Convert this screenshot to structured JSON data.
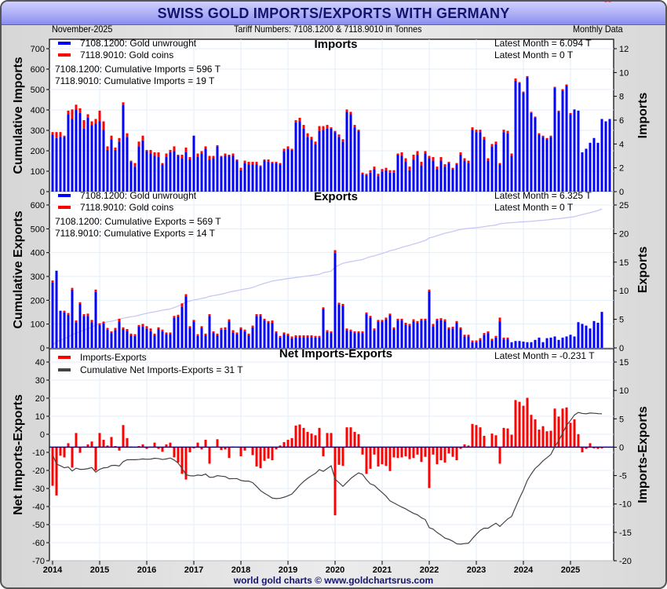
{
  "header": {
    "title": "SWISS GOLD IMPORTS/EXPORTS WITH GERMANY",
    "date": "November-2025",
    "tariff": "Tariff Numbers: 7108.1200 & 7118.9010 in Tonnes",
    "frequency": "Monthly Data"
  },
  "footer": "world gold charts © www.goldchartsrus.com",
  "colors": {
    "unwrought": "#0000ff",
    "coins": "#ff0000",
    "net": "#ff0000",
    "cumulative": "#444444",
    "cum_bg_line": "#c8c8f5",
    "zero_line": "#0000c0",
    "grid": "#e3eef8"
  },
  "chart_data": [
    {
      "type": "bar",
      "title": "Imports",
      "ylabel": "Cumulative Imports",
      "ylabel_right": "Imports",
      "ylim_left": [
        0,
        700
      ],
      "yticks_left": [
        0,
        100,
        200,
        300,
        400,
        500,
        600,
        700
      ],
      "ylim_right": [
        0,
        12
      ],
      "yticks_right": [
        0,
        2,
        4,
        6,
        8,
        10,
        12
      ],
      "legend": [
        "7108.1200: Gold unwrought",
        "7118.9010: Gold coins"
      ],
      "annotations": [
        "7108.1200: Cumulative Imports = 596 T",
        "7118.9010: Cumulative Imports = 19 T",
        "Latest Month = 6.094 T",
        "Latest Month = 0 T"
      ],
      "start": "2014-01",
      "series": [
        {
          "name": "7108.1200: Gold unwrought",
          "values": [
            4.8,
            4.5,
            4.6,
            4.6,
            6.5,
            6.1,
            6.9,
            6.6,
            5.3,
            6.2,
            5.6,
            5.7,
            5.9,
            5.2,
            3.5,
            4.4,
            3.5,
            4.2,
            7.3,
            4.6,
            2.5,
            2.1,
            3.8,
            4.3,
            3.4,
            3.2,
            3.0,
            2.9,
            2.3,
            2.9,
            3.3,
            3.4,
            3.0,
            2.8,
            3.3,
            2.7,
            4.7,
            2.9,
            3.2,
            3.6,
            2.7,
            2.8,
            3.8,
            2.9,
            3.0,
            3.0,
            3.0,
            2.6,
            1.8,
            2.4,
            2.3,
            2.3,
            2.3,
            2.1,
            2.6,
            2.5,
            2.4,
            2.4,
            2.3,
            3.4,
            3.6,
            3.5,
            5.8,
            5.9,
            5.3,
            4.6,
            4.4,
            4.0,
            5.1,
            5.2,
            5.3,
            5.3,
            5.0,
            4.6,
            4.2,
            6.7,
            6.5,
            5.4,
            5.1,
            1.5,
            1.4,
            1.6,
            1.9,
            1.3,
            1.7,
            1.8,
            1.6,
            1.6,
            3.1,
            3.0,
            2.5,
            1.8,
            2.7,
            3.1,
            2.2,
            3.2,
            2.8,
            2.6,
            1.9,
            2.6,
            2.1,
            2.4,
            1.9,
            2.3,
            3.1,
            2.6,
            2.4,
            5.2,
            5.0,
            5.0,
            4.4,
            2.6,
            3.8,
            4.0,
            2.3,
            5.0,
            4.9,
            3.0,
            9.3,
            9.1,
            8.3,
            9.6,
            6.6,
            6.2,
            4.8,
            4.6,
            4.4,
            4.6,
            8.7,
            6.7,
            8.5,
            8.9,
            6.5,
            6.9,
            6.8,
            3.3,
            3.6,
            4.1,
            4.5,
            4.1,
            6.1,
            5.9,
            6.1
          ]
        },
        {
          "name": "7118.9010: Gold coins",
          "values": [
            0.2,
            0.5,
            0.4,
            0.1,
            0.3,
            0.8,
            0.4,
            0.4,
            0.7,
            0.3,
            0.3,
            0.4,
            0.9,
            0.7,
            0.3,
            0.3,
            0.2,
            0.3,
            0.2,
            0.3,
            0.1,
            0.3,
            0.4,
            0.4,
            0.1,
            0.3,
            0.3,
            0.4,
            0.1,
            0.3,
            0.2,
            0.4,
            0.1,
            0.3,
            0.4,
            0.2,
            0.0,
            0.3,
            0.2,
            0.2,
            0.3,
            0.2,
            0.1,
            0.1,
            0.2,
            0.1,
            0.2,
            0.1,
            0.2,
            0.2,
            0.2,
            0.2,
            0.2,
            0.1,
            0.1,
            0.2,
            0.1,
            0.1,
            0.1,
            0.2,
            0.2,
            0.1,
            0.2,
            0.3,
            0.3,
            0.3,
            0.2,
            0.2,
            0.4,
            0.3,
            0.3,
            0.1,
            0.1,
            0.2,
            0.2,
            0.2,
            0.2,
            0.2,
            0.1,
            0.1,
            0.1,
            0.2,
            0.2,
            0.2,
            0.2,
            0.2,
            0.2,
            0.2,
            0.1,
            0.3,
            0.3,
            0.3,
            0.4,
            0.3,
            0.3,
            0.2,
            0.2,
            0.3,
            0.2,
            0.3,
            0.2,
            0.1,
            0.1,
            0.1,
            0.2,
            0.2,
            0.2,
            0.2,
            0.2,
            0.2,
            0.2,
            0.2,
            0.2,
            0.2,
            0.1,
            0.2,
            0.2,
            0.2,
            0.2,
            0.1,
            0.1,
            0.1,
            0.1,
            0.1,
            0.1,
            0.1,
            0.1,
            0.1,
            0.1,
            0.1,
            0.1,
            0.1,
            0.1,
            0.0,
            0.0,
            0.0,
            0.0,
            0.0,
            0.0,
            0.0,
            0.0,
            0.0
          ]
        },
        {
          "name": "Cumulative Imports",
          "values_start": 0,
          "values_end": 615
        }
      ]
    },
    {
      "type": "bar",
      "title": "Exports",
      "ylabel": "Cumulative Exports",
      "ylabel_right": "Exports",
      "ylim_left": [
        0,
        600
      ],
      "yticks_left": [
        0,
        100,
        200,
        300,
        400,
        500,
        600
      ],
      "ylim_right": [
        0,
        25
      ],
      "yticks_right": [
        0,
        5,
        10,
        15,
        20,
        25
      ],
      "legend": [
        "7108.1200: Gold unwrought",
        "7118.9010: Gold coins"
      ],
      "annotations": [
        "7108.1200: Cumulative Exports = 569 T",
        "7118.9010: Cumulative Exports = 14 T",
        "Latest Month = 6.325 T",
        "Latest Month = 0 T"
      ],
      "start": "2014-01",
      "series": [
        {
          "name": "7108.1200: Gold unwrought",
          "values": [
            11.4,
            13.5,
            6.5,
            6.2,
            5.8,
            10.2,
            4.5,
            7.7,
            5.6,
            5.6,
            4.5,
            9.8,
            4.0,
            4.3,
            3.2,
            2.6,
            3.1,
            4.6,
            3.3,
            3.0,
            2.2,
            2.1,
            3.7,
            3.7,
            3.4,
            2.9,
            2.2,
            3.3,
            2.9,
            2.4,
            2.4,
            5.3,
            5.5,
            7.2,
            9.0,
            3.5,
            4.6,
            2.1,
            3.5,
            2.2,
            5.6,
            2.6,
            2.2,
            3.2,
            3.2,
            4.6,
            2.7,
            2.4,
            3.3,
            2.9,
            2.2,
            3.6,
            5.6,
            5.6,
            4.8,
            4.4,
            4.4,
            2.6,
            1.8,
            2.4,
            2.2,
            1.7,
            1.9,
            1.9,
            1.9,
            1.9,
            1.9,
            1.8,
            1.8,
            6.8,
            2.8,
            2.6,
            16.6,
            7.6,
            7.4,
            3.1,
            2.9,
            2.6,
            2.6,
            2.6,
            5.9,
            5.3,
            3.1,
            4.6,
            4.6,
            5.0,
            5.7,
            3.3,
            4.8,
            4.8,
            4.1,
            3.9,
            4.7,
            4.4,
            4.8,
            4.8,
            9.9,
            3.8,
            4.8,
            4.9,
            4.7,
            3.3,
            3.4,
            4.4,
            3.3,
            2.0,
            2.0,
            1.0,
            1.0,
            1.4,
            2.3,
            2.6,
            1.3,
            1.8,
            4.6,
            1.5,
            1.5,
            1.0,
            1.2,
            1.2,
            1.1,
            1.0,
            1.0,
            1.4,
            1.8,
            1.0,
            1.7,
            1.8,
            2.0,
            1.4,
            1.8,
            2.0,
            2.3,
            2.0,
            4.5,
            4.2,
            3.9,
            3.4,
            4.7,
            4.4,
            6.3
          ]
        },
        {
          "name": "7118.9010: Gold coins",
          "values": [
            0.4,
            0.0,
            0.0,
            0.3,
            0.3,
            0.3,
            0.3,
            0.3,
            0.3,
            0.4,
            0.4,
            0.4,
            0.3,
            0.3,
            0.3,
            0.3,
            0.4,
            0.5,
            0.3,
            0.3,
            0.3,
            0.3,
            0.3,
            0.5,
            0.4,
            0.5,
            0.3,
            0.3,
            0.3,
            0.3,
            0.3,
            0.3,
            0.3,
            0.6,
            0.4,
            0.3,
            0.3,
            0.3,
            0.3,
            0.3,
            0.3,
            0.3,
            0.3,
            0.3,
            0.4,
            0.4,
            0.4,
            0.3,
            0.3,
            0.3,
            0.3,
            0.3,
            0.3,
            0.3,
            0.3,
            0.3,
            0.4,
            0.3,
            0.3,
            0.3,
            0.3,
            0.3,
            0.3,
            0.3,
            0.3,
            0.3,
            0.3,
            0.3,
            0.3,
            0.3,
            0.3,
            0.3,
            0.5,
            0.3,
            0.3,
            0.3,
            0.3,
            0.3,
            0.3,
            0.3,
            0.3,
            0.3,
            0.3,
            0.3,
            0.3,
            0.3,
            0.3,
            0.3,
            0.3,
            0.3,
            0.3,
            0.3,
            0.3,
            0.3,
            0.3,
            0.3,
            0.3,
            0.4,
            0.3,
            0.3,
            0.3,
            0.3,
            0.3,
            0.3,
            0.3,
            0.3,
            0.3,
            0.3,
            0.3,
            0.3,
            0.3,
            0.3,
            0.3,
            0.3,
            0.7,
            0.3,
            0.3,
            0.0,
            0.0,
            0.0,
            0.0,
            0.0,
            0.0,
            0.0,
            0.0,
            0.0,
            0.0,
            0.0,
            0.0,
            0.0,
            0.0,
            0.0,
            0.0,
            0.0,
            0.0,
            0.0,
            0.0,
            0.0,
            0.0,
            0.0,
            0.0
          ]
        },
        {
          "name": "Cumulative Exports",
          "values_start": 0,
          "values_end": 583
        }
      ]
    },
    {
      "type": "bar",
      "title": "Net Imports-Exports",
      "ylabel": "Net Imports-Exports",
      "ylabel_right": "Imports-Exports",
      "ylim_left": [
        -70,
        40
      ],
      "yticks_left": [
        -70,
        -60,
        -50,
        -40,
        -30,
        -20,
        -10,
        0,
        10,
        20,
        30,
        40
      ],
      "ylim_right": [
        -20,
        15
      ],
      "yticks_right": [
        -20,
        -15,
        -10,
        -5,
        0,
        5,
        10,
        15
      ],
      "xticks": [
        "2014",
        "2015",
        "2016",
        "2017",
        "2018",
        "2019",
        "2020",
        "2021",
        "2022",
        "2023",
        "2024",
        "2025"
      ],
      "legend": [
        "Imports-Exports",
        "Cumulative Net Imports-Exports = 31 T"
      ],
      "annotations": [
        "Latest Month = -0.231 T"
      ],
      "start": "2014-01"
    }
  ]
}
